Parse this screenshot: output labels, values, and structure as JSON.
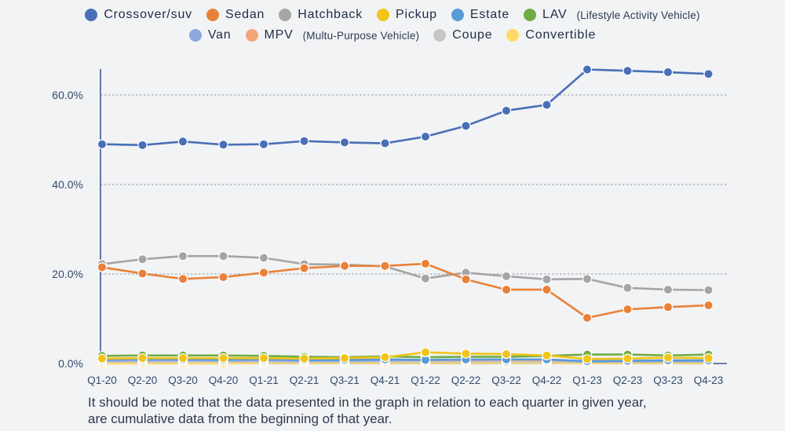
{
  "chart_data": {
    "type": "line",
    "title": "",
    "xlabel": "",
    "ylabel": "",
    "categories": [
      "Q1-20",
      "Q2-20",
      "Q3-20",
      "Q4-20",
      "Q1-21",
      "Q2-21",
      "Q3-21",
      "Q4-21",
      "Q1-22",
      "Q2-22",
      "Q3-22",
      "Q4-22",
      "Q1-23",
      "Q2-23",
      "Q3-23",
      "Q4-23"
    ],
    "yticks": [
      "0.0%",
      "20.0%",
      "40.0%",
      "60.0%"
    ],
    "ytick_values": [
      0,
      20,
      40,
      60
    ],
    "ylim": [
      0,
      68
    ],
    "grid": "horizontal dashed",
    "legend_placement": "top",
    "series": [
      {
        "name": "Crossover/suv",
        "color": "#4a6fb8",
        "values": [
          49.0,
          48.8,
          49.6,
          48.9,
          49.0,
          49.7,
          49.4,
          49.2,
          50.7,
          53.1,
          56.5,
          57.8,
          65.7,
          65.4,
          65.1,
          64.7
        ]
      },
      {
        "name": "Sedan",
        "color": "#e98138",
        "values": [
          21.5,
          20.1,
          18.9,
          19.3,
          20.3,
          21.3,
          21.8,
          21.8,
          22.3,
          18.8,
          16.5,
          16.5,
          10.2,
          12.1,
          12.6,
          13.0
        ]
      },
      {
        "name": "Hatchback",
        "color": "#a5a5a5",
        "values": [
          22.2,
          23.3,
          24.0,
          24.0,
          23.6,
          22.2,
          22.1,
          21.7,
          19.0,
          20.3,
          19.5,
          18.8,
          18.9,
          16.9,
          16.5,
          16.4
        ]
      },
      {
        "name": "Pickup",
        "color": "#f2c417",
        "values": [
          1.1,
          1.2,
          1.2,
          1.2,
          1.2,
          1.1,
          1.2,
          1.4,
          2.5,
          2.2,
          2.1,
          1.8,
          1.0,
          1.1,
          1.3,
          1.2
        ]
      },
      {
        "name": "Estate",
        "color": "#5b9bd5",
        "values": [
          0.9,
          1.0,
          0.9,
          0.9,
          1.0,
          0.8,
          0.8,
          0.9,
          0.8,
          0.9,
          0.9,
          0.9,
          0.5,
          0.6,
          0.7,
          0.7
        ]
      },
      {
        "name": "LAV",
        "sub": "(Lifestyle Activity Vehicle)",
        "color": "#6fac46",
        "values": [
          1.7,
          1.8,
          1.8,
          1.8,
          1.7,
          1.5,
          1.4,
          1.6,
          1.4,
          1.5,
          1.5,
          1.7,
          2.0,
          2.0,
          1.8,
          2.0
        ]
      },
      {
        "name": "Van",
        "color": "#8fa7dc",
        "values": [
          0.6,
          0.7,
          0.7,
          0.6,
          0.7,
          0.6,
          0.6,
          0.7,
          0.8,
          0.8,
          0.9,
          0.9,
          0.4,
          0.5,
          0.5,
          0.5
        ]
      },
      {
        "name": "MPV",
        "sub": "(Multu-Purpose Vehicle)",
        "color": "#f2a67a",
        "values": [
          0.8,
          0.8,
          0.8,
          0.9,
          0.7,
          0.8,
          0.7,
          0.8,
          0.7,
          0.7,
          0.8,
          0.7,
          0.6,
          0.6,
          0.6,
          0.6
        ]
      },
      {
        "name": "Coupe",
        "color": "#c6c6c6",
        "values": [
          0.4,
          0.4,
          0.4,
          0.5,
          0.4,
          0.4,
          0.4,
          0.4,
          0.4,
          0.4,
          0.4,
          0.4,
          0.3,
          0.4,
          0.4,
          0.4
        ]
      },
      {
        "name": "Convertible",
        "color": "#ffd966",
        "values": [
          0.0,
          0.0,
          0.0,
          0.0,
          0.1,
          0.1,
          0.1,
          0.1,
          0.1,
          0.1,
          0.1,
          0.1,
          0.0,
          0.1,
          0.1,
          0.1
        ]
      }
    ]
  },
  "note": {
    "line1": "It should be noted that the data presented in the graph in relation to each quarter in given year,",
    "line2": "are cumulative data from the beginning of that year."
  }
}
